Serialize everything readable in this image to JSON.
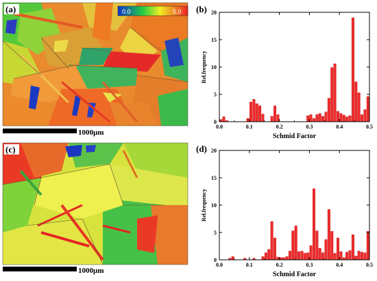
{
  "maps": [
    {
      "label": "(a)",
      "scale_bar": "1000µm",
      "colorbar": {
        "min": "0.0",
        "max": "5.0"
      }
    },
    {
      "label": "(c)",
      "scale_bar": "1000µm"
    }
  ],
  "colors": {
    "bar": "#ee2b2b",
    "bar_stroke": "#c51616"
  },
  "chart_data": [
    {
      "type": "bar",
      "panel_label": "(b)",
      "xlabel": "Schmid Factor",
      "ylabel": "Rel.frequency",
      "xlim": [
        0,
        0.5
      ],
      "ylim": [
        0,
        20
      ],
      "xticks": [
        0.0,
        0.1,
        0.2,
        0.3,
        0.4,
        0.5
      ],
      "xtick_labels": [
        "0.0",
        "0.1",
        "0.2",
        "0.3",
        "0.4",
        "0.5"
      ],
      "yticks": [
        0,
        5,
        10,
        15,
        20
      ],
      "ytick_labels": [
        "0",
        "5",
        "10",
        "15",
        "20"
      ],
      "x": [
        0.005,
        0.015,
        0.025,
        0.095,
        0.105,
        0.115,
        0.125,
        0.135,
        0.145,
        0.175,
        0.185,
        0.195,
        0.295,
        0.305,
        0.315,
        0.325,
        0.335,
        0.345,
        0.355,
        0.365,
        0.375,
        0.385,
        0.395,
        0.405,
        0.415,
        0.425,
        0.435,
        0.445,
        0.455,
        0.465,
        0.475,
        0.485,
        0.495
      ],
      "values": [
        0.4,
        0.9,
        0.2,
        0.6,
        3.6,
        4.1,
        3.3,
        2.9,
        1.4,
        1.0,
        2.9,
        1.3,
        1.1,
        1.3,
        0.6,
        1.3,
        1.5,
        1.0,
        1.8,
        4.3,
        9.9,
        10.6,
        1.9,
        1.5,
        1.2,
        0.9,
        1.1,
        19.0,
        7.3,
        5.3,
        1.3,
        2.2,
        4.6
      ]
    },
    {
      "type": "bar",
      "panel_label": "(d)",
      "xlabel": "Schmid Factor",
      "ylabel": "Rel.frequency",
      "xlim": [
        0,
        0.5
      ],
      "ylim": [
        0,
        20
      ],
      "xticks": [
        0.0,
        0.1,
        0.2,
        0.3,
        0.4,
        0.5
      ],
      "xtick_labels": [
        "0.0",
        "0.1",
        "0.2",
        "0.3",
        "0.4",
        "0.5"
      ],
      "yticks": [
        0,
        5,
        10,
        15,
        20
      ],
      "ytick_labels": [
        "0",
        "5",
        "10",
        "15",
        "20"
      ],
      "x": [
        0.035,
        0.045,
        0.085,
        0.115,
        0.145,
        0.155,
        0.165,
        0.175,
        0.185,
        0.195,
        0.205,
        0.215,
        0.225,
        0.235,
        0.245,
        0.255,
        0.265,
        0.275,
        0.285,
        0.295,
        0.305,
        0.315,
        0.325,
        0.335,
        0.345,
        0.355,
        0.365,
        0.375,
        0.385,
        0.395,
        0.405,
        0.415,
        0.425,
        0.435,
        0.445,
        0.455,
        0.465,
        0.475,
        0.485,
        0.495
      ],
      "values": [
        0.3,
        0.6,
        0.3,
        0.3,
        0.6,
        1.3,
        1.9,
        7.0,
        4.0,
        0.5,
        0.4,
        0.4,
        0.6,
        1.6,
        5.3,
        6.2,
        1.5,
        1.6,
        1.2,
        1.3,
        2.6,
        13.0,
        5.3,
        2.1,
        1.3,
        3.7,
        9.2,
        5.2,
        1.2,
        4.0,
        1.5,
        0.4,
        1.4,
        1.7,
        4.6,
        0.7,
        1.6,
        1.4,
        1.3,
        5.2
      ]
    }
  ]
}
